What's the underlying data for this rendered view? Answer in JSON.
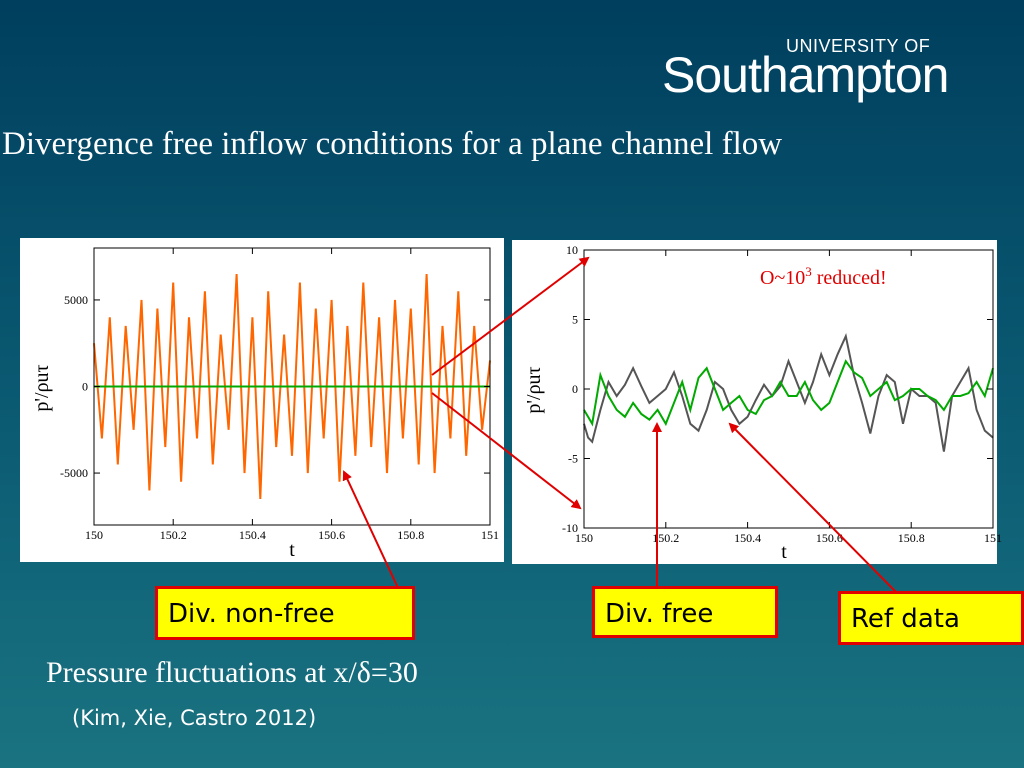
{
  "logo": {
    "university": "UNIVERSITY OF",
    "name": "Southampton"
  },
  "title": "Divergence free inflow conditions for a plane channel flow",
  "caption": "Pressure fluctuations at x/δ=30",
  "reference": "(Kim, Xie, Castro 2012)",
  "annotation": {
    "prefix": "O~10",
    "sup": "3",
    "suffix": " reduced!",
    "color": "#e00000"
  },
  "labels": {
    "div_non_free": "Div. non-free",
    "div_free": "Div. free",
    "ref_data": "Ref data"
  },
  "colors": {
    "non_free": "#ff6600",
    "free": "#00aa00",
    "ref": "#555555",
    "arrow": "#e00000",
    "callout_bg": "#ffff00"
  },
  "chart_data": [
    {
      "type": "line",
      "xlabel": "t",
      "ylabel": "p'/ρuτ",
      "xlim": [
        150,
        151
      ],
      "ylim": [
        -8000,
        8000
      ],
      "x_ticks": [
        "150",
        "150.2",
        "150.4",
        "150.6",
        "150.8",
        "151"
      ],
      "y_ticks": [
        "5000",
        "0",
        "-5000"
      ],
      "y_tick_values": [
        5000,
        0,
        -5000
      ],
      "grid": false,
      "series": [
        {
          "color": "#ff6600",
          "x": [
            150,
            150.02,
            150.04,
            150.06,
            150.08,
            150.1,
            150.12,
            150.14,
            150.16,
            150.18,
            150.2,
            150.22,
            150.24,
            150.26,
            150.28,
            150.3,
            150.32,
            150.34,
            150.36,
            150.38,
            150.4,
            150.42,
            150.44,
            150.46,
            150.48,
            150.5,
            150.52,
            150.54,
            150.56,
            150.58,
            150.6,
            150.62,
            150.64,
            150.66,
            150.68,
            150.7,
            150.72,
            150.74,
            150.76,
            150.78,
            150.8,
            150.82,
            150.84,
            150.86,
            150.88,
            150.9,
            150.92,
            150.94,
            150.96,
            150.98,
            151
          ],
          "y": [
            2500,
            -3000,
            4000,
            -4500,
            3500,
            -2500,
            5000,
            -6000,
            4500,
            -3500,
            6000,
            -5500,
            4000,
            -3000,
            5500,
            -4500,
            3000,
            -2500,
            6500,
            -5000,
            4000,
            -6500,
            5500,
            -3500,
            3000,
            -4000,
            6000,
            -5000,
            4500,
            -3000,
            5000,
            -5500,
            3500,
            -4000,
            6000,
            -3500,
            4000,
            -5000,
            5000,
            -3000,
            4500,
            -4500,
            6500,
            -5000,
            3500,
            -3000,
            5500,
            -4000,
            3500,
            -2500,
            1500
          ]
        },
        {
          "color": "#00aa00",
          "x": [
            150,
            151
          ],
          "y": [
            0,
            0
          ]
        }
      ]
    },
    {
      "type": "line",
      "xlabel": "t",
      "ylabel": "p'/ρuτ",
      "xlim": [
        150,
        151
      ],
      "ylim": [
        -10,
        10
      ],
      "x_ticks": [
        "150",
        "150.2",
        "150.4",
        "150.6",
        "150.8",
        "151"
      ],
      "y_ticks": [
        "10",
        "5",
        "0",
        "-5",
        "-10"
      ],
      "y_tick_values": [
        10,
        5,
        0,
        -5,
        -10
      ],
      "grid": false,
      "series": [
        {
          "name": "Ref data",
          "color": "#555555",
          "x": [
            150,
            150.01,
            150.02,
            150.04,
            150.06,
            150.08,
            150.1,
            150.12,
            150.14,
            150.16,
            150.18,
            150.2,
            150.22,
            150.24,
            150.26,
            150.28,
            150.3,
            150.32,
            150.34,
            150.36,
            150.38,
            150.4,
            150.42,
            150.44,
            150.46,
            150.48,
            150.5,
            150.52,
            150.54,
            150.56,
            150.58,
            150.6,
            150.62,
            150.64,
            150.66,
            150.68,
            150.7,
            150.72,
            150.74,
            150.76,
            150.78,
            150.8,
            150.82,
            150.84,
            150.86,
            150.88,
            150.9,
            150.92,
            150.94,
            150.96,
            150.98,
            151
          ],
          "y": [
            -2.5,
            -3.5,
            -3.8,
            -1.5,
            0.5,
            -0.5,
            0.3,
            1.5,
            0.2,
            -1.0,
            -0.5,
            0.0,
            1.2,
            -0.5,
            -2.5,
            -3.0,
            -1.5,
            0.5,
            0.0,
            -1.5,
            -2.5,
            -2.0,
            -0.8,
            0.3,
            -0.5,
            0.2,
            2.0,
            0.5,
            -1.0,
            0.5,
            2.5,
            1.0,
            2.5,
            3.8,
            1.0,
            -1.0,
            -3.2,
            -0.5,
            1.0,
            0.5,
            -2.5,
            0.0,
            -0.5,
            -0.5,
            -1.0,
            -4.5,
            -0.5,
            0.5,
            1.5,
            -1.5,
            -3.0,
            -3.5
          ]
        },
        {
          "name": "Div. free",
          "color": "#00aa00",
          "x": [
            150,
            150.02,
            150.04,
            150.06,
            150.08,
            150.1,
            150.12,
            150.14,
            150.16,
            150.18,
            150.2,
            150.22,
            150.24,
            150.26,
            150.28,
            150.3,
            150.32,
            150.34,
            150.36,
            150.38,
            150.4,
            150.42,
            150.44,
            150.46,
            150.48,
            150.5,
            150.52,
            150.54,
            150.56,
            150.58,
            150.6,
            150.62,
            150.64,
            150.66,
            150.68,
            150.7,
            150.72,
            150.74,
            150.76,
            150.78,
            150.8,
            150.82,
            150.84,
            150.86,
            150.88,
            150.9,
            150.92,
            150.94,
            150.96,
            150.98,
            151
          ],
          "y": [
            -1.5,
            -2.5,
            1.0,
            -0.5,
            -1.5,
            -2.0,
            -1.0,
            -1.8,
            -2.2,
            -1.5,
            -2.5,
            -1.0,
            0.5,
            -1.5,
            0.8,
            1.5,
            0.0,
            -1.5,
            -1.0,
            -0.5,
            -1.5,
            -1.8,
            -0.8,
            -0.5,
            0.5,
            -0.5,
            -0.5,
            0.5,
            -0.8,
            -1.5,
            -1.0,
            0.5,
            2.0,
            1.2,
            0.8,
            -0.5,
            0.0,
            0.5,
            -0.8,
            -0.5,
            0.0,
            0.0,
            -0.5,
            -0.8,
            -1.5,
            -0.5,
            -0.5,
            -0.3,
            0.5,
            -0.5,
            1.5
          ]
        }
      ]
    }
  ]
}
